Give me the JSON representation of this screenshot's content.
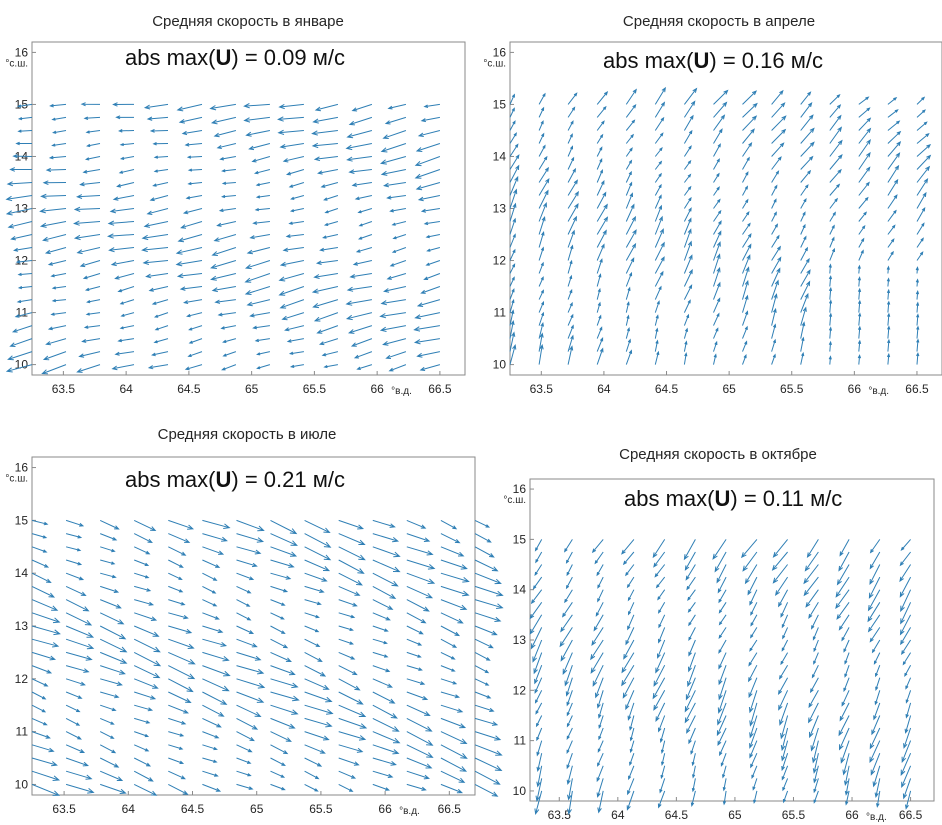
{
  "chart_data": [
    {
      "type": "quiver",
      "title": "Средняя скорость в январе",
      "annotation_prefix": "abs max(",
      "annotation_symbol": "U",
      "annotation_value": ") = 0.09 м/с",
      "y_unit": "°с.ш.",
      "x_unit": "°в.д.",
      "x_ticks": [
        "63.5",
        "64",
        "64.5",
        "65",
        "65.5",
        "66",
        "66.5"
      ],
      "y_ticks": [
        "10",
        "11",
        "12",
        "13",
        "14",
        "15",
        "16"
      ],
      "xlim": [
        63.25,
        66.7
      ],
      "ylim": [
        9.8,
        16.2
      ],
      "grid_x": [
        63.25,
        66.5,
        13
      ],
      "grid_y": [
        10.0,
        15.0,
        21
      ],
      "field": {
        "mode": "zonal",
        "base_dir": 182,
        "dir_drift": 12,
        "south_dir": 195,
        "speed": 0.9
      },
      "grid": false
    },
    {
      "type": "quiver",
      "title": "Средняя скорость в апреле",
      "annotation_prefix": "abs max(",
      "annotation_symbol": "U",
      "annotation_value": ") = 0.16 м/с",
      "y_unit": "°с.ш.",
      "x_unit": "°в.д.",
      "x_ticks": [
        "63.5",
        "64",
        "64.5",
        "65",
        "65.5",
        "66",
        "66.5"
      ],
      "y_ticks": [
        "10",
        "11",
        "12",
        "13",
        "14",
        "15",
        "16"
      ],
      "xlim": [
        63.25,
        66.7
      ],
      "ylim": [
        9.8,
        16.2
      ],
      "grid_x": [
        63.25,
        66.5,
        15
      ],
      "grid_y": [
        10.0,
        15.0,
        21
      ],
      "field": {
        "mode": "northeast",
        "base_dir": 60,
        "dir_drift": -20,
        "south_dir": 75,
        "speed": 0.7
      },
      "grid": false
    },
    {
      "type": "quiver",
      "title": "Средняя скорость в июле",
      "annotation_prefix": "abs max(",
      "annotation_symbol": "U",
      "annotation_value": ") = 0.21 м/с",
      "y_unit": "°с.ш.",
      "x_unit": "°в.д.",
      "x_ticks": [
        "63.5",
        "64",
        "64.5",
        "65",
        "65.5",
        "66",
        "66.5"
      ],
      "y_ticks": [
        "10",
        "11",
        "12",
        "13",
        "14",
        "15",
        "16"
      ],
      "xlim": [
        63.25,
        66.7
      ],
      "ylim": [
        9.8,
        16.2
      ],
      "grid_x": [
        63.25,
        66.7,
        14
      ],
      "grid_y": [
        10.0,
        15.0,
        21
      ],
      "field": {
        "mode": "southeast",
        "base_dir": -20,
        "dir_drift": -3,
        "south_dir": -22,
        "speed": 1.0
      },
      "grid": false
    },
    {
      "type": "quiver",
      "title": "Средняя скорость в октябре",
      "annotation_prefix": "abs max(",
      "annotation_symbol": "U",
      "annotation_value": ") = 0.11 м/с",
      "y_unit": "°с.ш.",
      "x_unit": "°в.д.",
      "x_ticks": [
        "63.5",
        "64",
        "64.5",
        "65",
        "65.5",
        "66",
        "66.5"
      ],
      "y_ticks": [
        "10",
        "11",
        "12",
        "13",
        "14",
        "15",
        "16"
      ],
      "xlim": [
        63.25,
        66.7
      ],
      "ylim": [
        9.8,
        16.2
      ],
      "grid_x": [
        63.35,
        66.5,
        13
      ],
      "grid_y": [
        10.0,
        15.0,
        21
      ],
      "field": {
        "mode": "southwest",
        "base_dir": 235,
        "dir_drift": 0,
        "south_dir": 255,
        "speed": 0.85
      },
      "grid": false
    }
  ]
}
